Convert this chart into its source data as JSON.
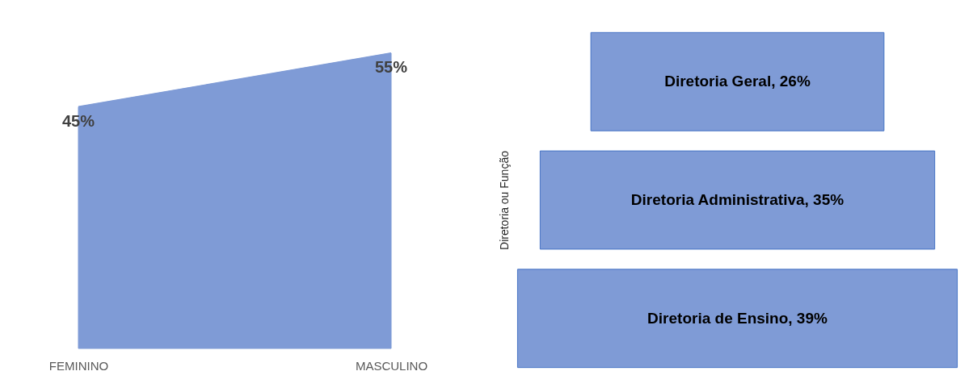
{
  "chart_data": [
    {
      "type": "area",
      "categories": [
        "FEMININO",
        "MASCULINO"
      ],
      "values": [
        45,
        55
      ],
      "value_labels": [
        "45%",
        "55%"
      ],
      "color": "#7f9bd6",
      "tick_labels": "x"
    },
    {
      "type": "other",
      "ylabel": "Diretoria ou Função",
      "categories": [
        null,
        null,
        null
      ],
      "values": [
        26,
        35,
        39
      ],
      "value_labels": [
        "Diretoria Geral, 26%",
        "Diretoria Administrativa, 35%",
        "Diretoria de Ensino, 39%"
      ],
      "color": "#7f9bd6"
    }
  ]
}
